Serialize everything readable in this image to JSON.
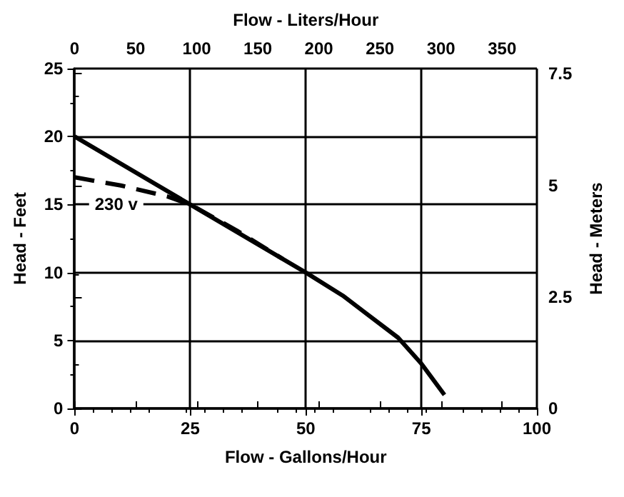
{
  "chart_data": {
    "type": "line",
    "xlabel": "Flow - Gallons/Hour",
    "ylabel": "Head - Feet",
    "x2label": "Flow - Liters/Hour",
    "y2label": "Head - Meters",
    "xlim": [
      0,
      100
    ],
    "xticks": [
      0,
      25,
      50,
      75,
      100
    ],
    "ylim": [
      0,
      25
    ],
    "yticks": [
      0,
      5,
      10,
      15,
      20,
      25
    ],
    "x2lim": [
      0,
      378.5
    ],
    "x2ticks": [
      0,
      50,
      100,
      150,
      200,
      250,
      300,
      350
    ],
    "y2lim": [
      0,
      7.62
    ],
    "y2ticks": [
      0,
      2.5,
      5,
      7.5
    ],
    "grid": true,
    "legend": false,
    "marker": "none",
    "series": [
      {
        "color": "#000000",
        "line_style": "solid",
        "x": [
          0,
          25,
          50,
          58,
          70,
          75,
          80
        ],
        "values": [
          20,
          15,
          10,
          8.3,
          5.2,
          3.3,
          1
        ]
      },
      {
        "name": "230 v",
        "color": "#000000",
        "line_style": "dashed",
        "x": [
          0,
          10,
          20,
          25,
          35,
          45
        ],
        "values": [
          17,
          16.4,
          15.6,
          15,
          13.1,
          11
        ]
      }
    ]
  }
}
